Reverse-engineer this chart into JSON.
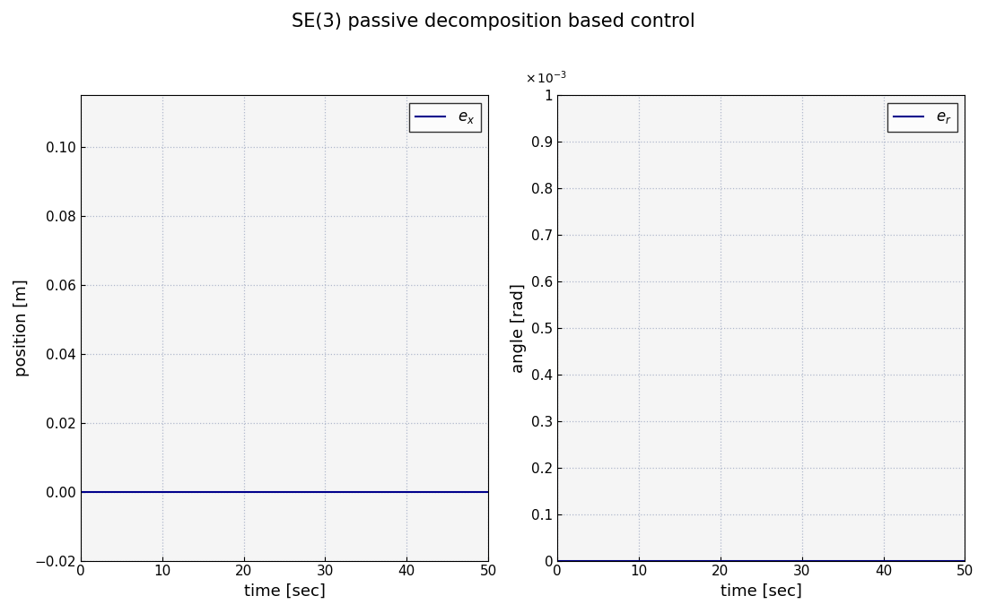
{
  "title": "SE(3) passive decomposition based control",
  "title_fontsize": 15,
  "left_plot": {
    "xlabel": "time [sec]",
    "ylabel": "position [m]",
    "xlim": [
      0,
      50
    ],
    "ylim": [
      -0.02,
      0.115
    ],
    "yticks": [
      -0.02,
      0,
      0.02,
      0.04,
      0.06,
      0.08,
      0.1
    ],
    "xticks": [
      0,
      10,
      20,
      30,
      40,
      50
    ],
    "legend_label": "e_x",
    "line_color": "#00008B",
    "line_value": 0.0
  },
  "right_plot": {
    "xlabel": "time [sec]",
    "ylabel": "angle [rad]",
    "xlim": [
      0,
      50
    ],
    "ylim": [
      0,
      1.0
    ],
    "yticks": [
      0,
      0.1,
      0.2,
      0.3,
      0.4,
      0.5,
      0.6,
      0.7,
      0.8,
      0.9,
      1.0
    ],
    "xticks": [
      0,
      10,
      20,
      30,
      40,
      50
    ],
    "legend_label": "e_r",
    "line_color": "#00008B",
    "line_value": 0.0
  },
  "background_color": "#ffffff",
  "axes_bg_color": "#f5f5f5",
  "grid_color": "#b0b8cc",
  "font_size_ticks": 11,
  "font_size_labels": 13,
  "font_size_legend": 12
}
